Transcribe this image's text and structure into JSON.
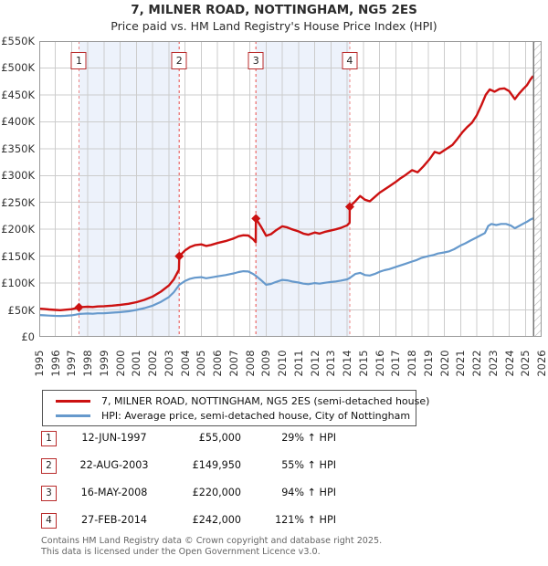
{
  "title": "7, MILNER ROAD, NOTTINGHAM, NG5 2ES",
  "subtitle": "Price paid vs. HM Land Registry's House Price Index (HPI)",
  "colors": {
    "property_line": "#cc1111",
    "hpi_line": "#6699cc",
    "sale_dash": "#ec8585",
    "band_fill": "#edf2fb",
    "grid": "#cccccc",
    "plot_border": "#999999",
    "hatch": "#b5b5b5",
    "marker_box_border": "#b92b2b"
  },
  "chart_data": {
    "type": "line",
    "x_min": 1995,
    "x_max": 2026,
    "y_max": 550,
    "grid": true,
    "unit": "GBP thousands",
    "y_ticks": [
      {
        "v": 0,
        "label": "£0"
      },
      {
        "v": 50,
        "label": "£50K"
      },
      {
        "v": 100,
        "label": "£100K"
      },
      {
        "v": 150,
        "label": "£150K"
      },
      {
        "v": 200,
        "label": "£200K"
      },
      {
        "v": 250,
        "label": "£250K"
      },
      {
        "v": 300,
        "label": "£300K"
      },
      {
        "v": 350,
        "label": "£350K"
      },
      {
        "v": 400,
        "label": "£400K"
      },
      {
        "v": 450,
        "label": "£450K"
      },
      {
        "v": 500,
        "label": "£500K"
      },
      {
        "v": 550,
        "label": "£550K"
      }
    ],
    "x_ticks": [
      1995,
      1996,
      1997,
      1998,
      1999,
      2000,
      2001,
      2002,
      2003,
      2004,
      2005,
      2006,
      2007,
      2008,
      2009,
      2010,
      2011,
      2012,
      2013,
      2014,
      2015,
      2016,
      2017,
      2018,
      2019,
      2020,
      2021,
      2022,
      2023,
      2024,
      2025,
      2026
    ],
    "ownership_bands": [
      [
        1997.45,
        2003.64
      ],
      [
        2008.37,
        2014.16
      ]
    ],
    "hatch_from": 2025.5,
    "series": [
      {
        "name": "7, MILNER ROAD, NOTTINGHAM, NG5 2ES (semi-detached house)",
        "color": "#cc1111",
        "points": [
          [
            1995.0,
            52.5
          ],
          [
            1995.3,
            52
          ],
          [
            1995.6,
            51
          ],
          [
            1996.0,
            50
          ],
          [
            1996.3,
            49.5
          ],
          [
            1996.6,
            50.5
          ],
          [
            1997.0,
            51.5
          ],
          [
            1997.25,
            53.2
          ],
          [
            1997.45,
            55
          ],
          [
            1997.7,
            55.5
          ],
          [
            1998.0,
            56
          ],
          [
            1998.3,
            55.5
          ],
          [
            1998.6,
            56.5
          ],
          [
            1999.0,
            57
          ],
          [
            1999.5,
            58
          ],
          [
            2000.0,
            59.5
          ],
          [
            2000.5,
            61.5
          ],
          [
            2001.0,
            64.5
          ],
          [
            2001.5,
            69
          ],
          [
            2002.0,
            75
          ],
          [
            2002.5,
            84
          ],
          [
            2003.0,
            95.5
          ],
          [
            2003.3,
            107
          ],
          [
            2003.62,
            124.7
          ],
          [
            2003.64,
            149.95
          ],
          [
            2004.0,
            161
          ],
          [
            2004.3,
            167
          ],
          [
            2004.6,
            170.5
          ],
          [
            2005.0,
            172
          ],
          [
            2005.3,
            169
          ],
          [
            2005.6,
            171
          ],
          [
            2006.0,
            174.5
          ],
          [
            2006.5,
            178
          ],
          [
            2007.0,
            183
          ],
          [
            2007.3,
            187
          ],
          [
            2007.6,
            189
          ],
          [
            2007.9,
            188.5
          ],
          [
            2008.2,
            181.5
          ],
          [
            2008.36,
            175.8
          ],
          [
            2008.37,
            220
          ],
          [
            2008.7,
            204
          ],
          [
            2009.0,
            188
          ],
          [
            2009.3,
            191
          ],
          [
            2009.6,
            198
          ],
          [
            2010.0,
            205.5
          ],
          [
            2010.3,
            203.5
          ],
          [
            2010.6,
            200
          ],
          [
            2011.0,
            196
          ],
          [
            2011.3,
            192
          ],
          [
            2011.6,
            190
          ],
          [
            2012.0,
            194
          ],
          [
            2012.3,
            192
          ],
          [
            2012.6,
            195
          ],
          [
            2013.0,
            198
          ],
          [
            2013.3,
            200
          ],
          [
            2013.6,
            202.5
          ],
          [
            2014.0,
            207.5
          ],
          [
            2014.15,
            212.4
          ],
          [
            2014.16,
            242
          ],
          [
            2014.5,
            252
          ],
          [
            2014.8,
            262
          ],
          [
            2015.1,
            255
          ],
          [
            2015.4,
            252
          ],
          [
            2015.7,
            260
          ],
          [
            2016.0,
            268
          ],
          [
            2016.3,
            274
          ],
          [
            2016.6,
            280
          ],
          [
            2017.0,
            288
          ],
          [
            2017.3,
            295
          ],
          [
            2017.6,
            301
          ],
          [
            2018.0,
            310
          ],
          [
            2018.35,
            306
          ],
          [
            2018.7,
            317
          ],
          [
            2019.1,
            331
          ],
          [
            2019.4,
            344
          ],
          [
            2019.7,
            341
          ],
          [
            2020.05,
            348
          ],
          [
            2020.5,
            357
          ],
          [
            2020.8,
            368
          ],
          [
            2021.1,
            380
          ],
          [
            2021.4,
            390
          ],
          [
            2021.7,
            398
          ],
          [
            2022.0,
            412
          ],
          [
            2022.3,
            432
          ],
          [
            2022.55,
            450
          ],
          [
            2022.8,
            460
          ],
          [
            2023.1,
            456
          ],
          [
            2023.4,
            461
          ],
          [
            2023.7,
            462
          ],
          [
            2024.0,
            457
          ],
          [
            2024.35,
            442
          ],
          [
            2024.6,
            452
          ],
          [
            2024.9,
            462
          ],
          [
            2025.1,
            468
          ],
          [
            2025.3,
            478
          ],
          [
            2025.45,
            484
          ]
        ]
      },
      {
        "name": "HPI: Average price, semi-detached house, City of Nottingham",
        "color": "#6699cc",
        "points": [
          [
            1995.0,
            40.5
          ],
          [
            1995.3,
            40
          ],
          [
            1995.6,
            39.5
          ],
          [
            1996.0,
            39
          ],
          [
            1996.3,
            38.8
          ],
          [
            1996.6,
            39.2
          ],
          [
            1997.0,
            40
          ],
          [
            1997.25,
            41.2
          ],
          [
            1997.45,
            42.6
          ],
          [
            1997.7,
            43
          ],
          [
            1998.0,
            43.5
          ],
          [
            1998.3,
            43
          ],
          [
            1998.6,
            43.8
          ],
          [
            1999.0,
            44
          ],
          [
            1999.5,
            45
          ],
          [
            2000.0,
            46
          ],
          [
            2000.5,
            47.5
          ],
          [
            2001.0,
            50
          ],
          [
            2001.5,
            53.5
          ],
          [
            2002.0,
            58
          ],
          [
            2002.5,
            65
          ],
          [
            2003.0,
            74
          ],
          [
            2003.3,
            83
          ],
          [
            2003.64,
            96.7
          ],
          [
            2004.0,
            104
          ],
          [
            2004.3,
            108
          ],
          [
            2004.6,
            110
          ],
          [
            2005.0,
            111
          ],
          [
            2005.3,
            109
          ],
          [
            2005.6,
            110.5
          ],
          [
            2006.0,
            112.5
          ],
          [
            2006.5,
            115
          ],
          [
            2007.0,
            118
          ],
          [
            2007.3,
            120.5
          ],
          [
            2007.6,
            122
          ],
          [
            2007.9,
            121.5
          ],
          [
            2008.2,
            117
          ],
          [
            2008.37,
            113.4
          ],
          [
            2008.7,
            105
          ],
          [
            2009.0,
            97
          ],
          [
            2009.3,
            98.5
          ],
          [
            2009.6,
            102
          ],
          [
            2010.0,
            106
          ],
          [
            2010.3,
            105
          ],
          [
            2010.6,
            103
          ],
          [
            2011.0,
            101
          ],
          [
            2011.3,
            99
          ],
          [
            2011.6,
            98
          ],
          [
            2012.0,
            100
          ],
          [
            2012.3,
            99
          ],
          [
            2012.6,
            100.5
          ],
          [
            2013.0,
            102
          ],
          [
            2013.3,
            103
          ],
          [
            2013.6,
            104.5
          ],
          [
            2014.0,
            107
          ],
          [
            2014.16,
            109.5
          ],
          [
            2014.5,
            117
          ],
          [
            2014.8,
            119
          ],
          [
            2015.1,
            115
          ],
          [
            2015.4,
            114
          ],
          [
            2015.7,
            117
          ],
          [
            2016.0,
            121
          ],
          [
            2016.3,
            124
          ],
          [
            2016.6,
            126
          ],
          [
            2017.0,
            130
          ],
          [
            2017.3,
            133
          ],
          [
            2017.6,
            136
          ],
          [
            2018.0,
            140
          ],
          [
            2018.3,
            143
          ],
          [
            2018.6,
            147
          ],
          [
            2019.0,
            150
          ],
          [
            2019.3,
            152
          ],
          [
            2019.6,
            155
          ],
          [
            2020.0,
            157
          ],
          [
            2020.3,
            159
          ],
          [
            2020.6,
            163
          ],
          [
            2021.0,
            170
          ],
          [
            2021.3,
            174
          ],
          [
            2021.6,
            179
          ],
          [
            2022.0,
            185
          ],
          [
            2022.3,
            190
          ],
          [
            2022.5,
            193
          ],
          [
            2022.7,
            206
          ],
          [
            2022.9,
            210
          ],
          [
            2023.2,
            208
          ],
          [
            2023.5,
            210
          ],
          [
            2023.8,
            210
          ],
          [
            2024.1,
            207
          ],
          [
            2024.35,
            202
          ],
          [
            2024.6,
            206
          ],
          [
            2024.9,
            211
          ],
          [
            2025.1,
            214
          ],
          [
            2025.3,
            218
          ],
          [
            2025.45,
            220
          ]
        ]
      }
    ],
    "sales": [
      {
        "n": "1",
        "year": 1997.45,
        "value": 55,
        "date": "12-JUN-1997",
        "price": "£55,000",
        "hpi": "29% ↑ HPI"
      },
      {
        "n": "2",
        "year": 2003.64,
        "value": 149.95,
        "date": "22-AUG-2003",
        "price": "£149,950",
        "hpi": "55% ↑ HPI"
      },
      {
        "n": "3",
        "year": 2008.37,
        "value": 220,
        "date": "16-MAY-2008",
        "price": "£220,000",
        "hpi": "94% ↑ HPI"
      },
      {
        "n": "4",
        "year": 2014.16,
        "value": 242,
        "date": "27-FEB-2014",
        "price": "£242,000",
        "hpi": "121% ↑ HPI"
      }
    ]
  },
  "legend": [
    {
      "label": "7, MILNER ROAD, NOTTINGHAM, NG5 2ES (semi-detached house)",
      "color": "#cc1111"
    },
    {
      "label": "HPI: Average price, semi-detached house, City of Nottingham",
      "color": "#6699cc"
    }
  ],
  "footer": {
    "line1": "Contains HM Land Registry data © Crown copyright and database right 2025.",
    "line2": "This data is licensed under the Open Government Licence v3.0."
  }
}
